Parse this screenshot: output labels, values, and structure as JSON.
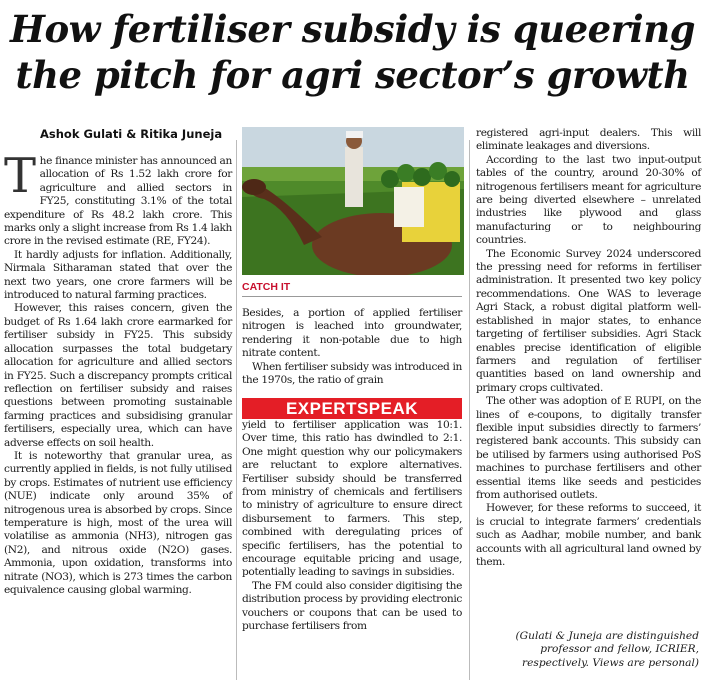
{
  "headline": {
    "line1": "How fertiliser subsidy is queering",
    "line2": "the pitch for agri sector’s growth"
  },
  "byline": "Ashok Gulati & Ritika Juneja",
  "column1": {
    "dropcap": "T",
    "p1": "he finance minister has announced an allocation of Rs 1.52 lakh crore for agriculture and allied sectors in FY25, constituting 3.1% of the total expenditure of Rs 48.2 lakh crore. This marks only a slight increase from Rs 1.4 lakh crore in the revised estimate (RE, FY24).",
    "p2": "It hardly adjusts for inflation. Additionally, Nirmala Sitharaman stated that over the next two years, one crore farmers will be introduced to natural farming practices.",
    "p3": "However, this raises concern, given the budget of Rs 1.64 lakh crore earmarked for fertiliser subsidy in FY25. This subsidy allocation surpasses the total budgetary allocation for agriculture and allied sectors in FY25. Such a discrepancy prompts critical reflection on fertiliser subsidy and raises questions between promoting sustainable farming practices and subsidising granular fertilisers, especially urea, which can have adverse effects on soil health.",
    "p4": "It is noteworthy that granular urea, as currently applied in fields, is not fully utilised by crops. Estimates of nutrient use efficiency (NUE) indicate only around 35% of nitrogenous urea is absorbed by crops. Since temperature is high, most of the urea will volatilise as ammonia (NH3), nitrogen gas (N2), and nitrous oxide (N2O) gases. Ammonia, upon oxidation, transforms into nitrate (NO3), which is 273 times the carbon equivalence causing global warming."
  },
  "photo": {
    "caption": "CATCH IT",
    "colors": {
      "sky": "#c9d7e0",
      "field": "#4f8a2a",
      "camel": "#6b3a22",
      "sack": "#e8d23a"
    }
  },
  "column2": {
    "p1": "Besides, a portion of applied fertiliser nitrogen is leached into groundwater, rendering it non-potable due to high nitrate content.",
    "p2": "When fertiliser subsidy was introduced in the 1970s, the ratio of grain",
    "banner": "EXPERTSPEAK",
    "p3": "yield to fertiliser application was 10:1. Over time, this ratio has dwindled to 2:1. One might question why our policymakers are reluctant to explore alternatives. Fertiliser subsidy should be transferred from ministry of chemicals and fertilisers to ministry of agriculture to ensure direct disbursement to farmers. This step, combined with deregulating prices of specific fertilisers, has the potential to encourage equitable pricing and usage, potentially leading to savings in subsidies.",
    "p4": "The FM could also consider digitising the distribution process by providing electronic vouchers or coupons that can be used to purchase fertilisers from"
  },
  "column3": {
    "p1": "registered agri-input dealers. This will eliminate leakages and diversions.",
    "p2": "According to the last two input-output tables of the country, around 20-30% of nitrogenous fertilisers meant for agriculture are being diverted elsewhere – unrelated industries like plywood and glass manufacturing or to neighbouring countries.",
    "p3": "The Economic Survey 2024 underscored the pressing need for reforms in fertiliser administration. It presented two key policy recommendations. One WAS to leverage Agri Stack, a robust digital platform well-established in major states, to enhance targeting of fertiliser subsidies. Agri Stack enables precise identification of eligible farmers and regulation of fertiliser quantities based on land ownership and primary crops cultivated.",
    "p4": "The other was adoption of E RUPI, on the lines of e-coupons, to digitally transfer flexible input subsidies directly to farmers’ registered bank accounts. This subsidy can be utilised by farmers using authorised PoS machines to purchase fertilisers and other essential items like seeds and pesticides from authorised outlets.",
    "p5": "However, for these reforms to succeed, it is crucial to integrate farmers’ credentials such as Aadhar, mobile number, and bank accounts with all agricultural land owned by them.",
    "note": "(Gulati & Juneja are distinguished professor and fellow, ICRIER, respectively. Views are personal)"
  },
  "accent_color": "#e41e26"
}
